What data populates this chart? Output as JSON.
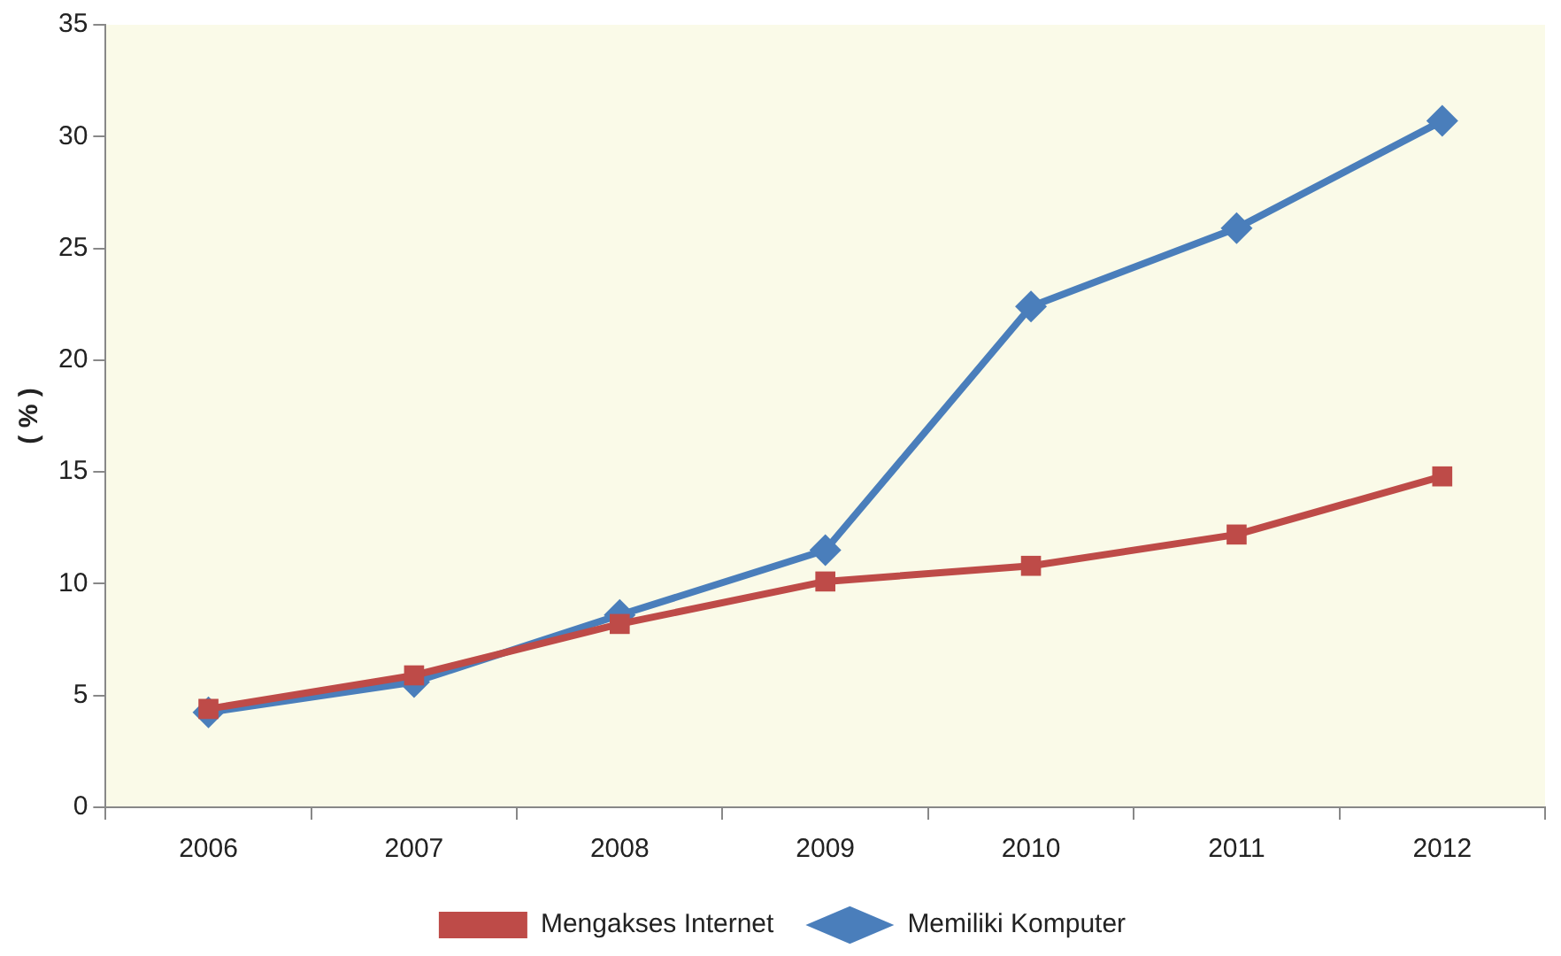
{
  "chart_data": {
    "type": "line",
    "ylabel": "( % )",
    "categories": [
      "2006",
      "2007",
      "2008",
      "2009",
      "2010",
      "2011",
      "2012"
    ],
    "series": [
      {
        "name": "Memiliki Komputer",
        "color": "#4a7ebb",
        "marker": "diamond",
        "values": [
          4.25,
          5.6,
          8.6,
          11.5,
          22.4,
          25.9,
          30.7
        ]
      },
      {
        "name": "Mengakses Internet",
        "color": "#be4b48",
        "marker": "square",
        "values": [
          4.4,
          5.9,
          8.2,
          10.1,
          10.8,
          12.2,
          14.8
        ]
      }
    ],
    "ylim": [
      0,
      35
    ],
    "yticks": [
      0,
      5,
      10,
      15,
      20,
      25,
      30,
      35
    ],
    "grid": false,
    "legend": "bottom",
    "line_style": "solid"
  }
}
